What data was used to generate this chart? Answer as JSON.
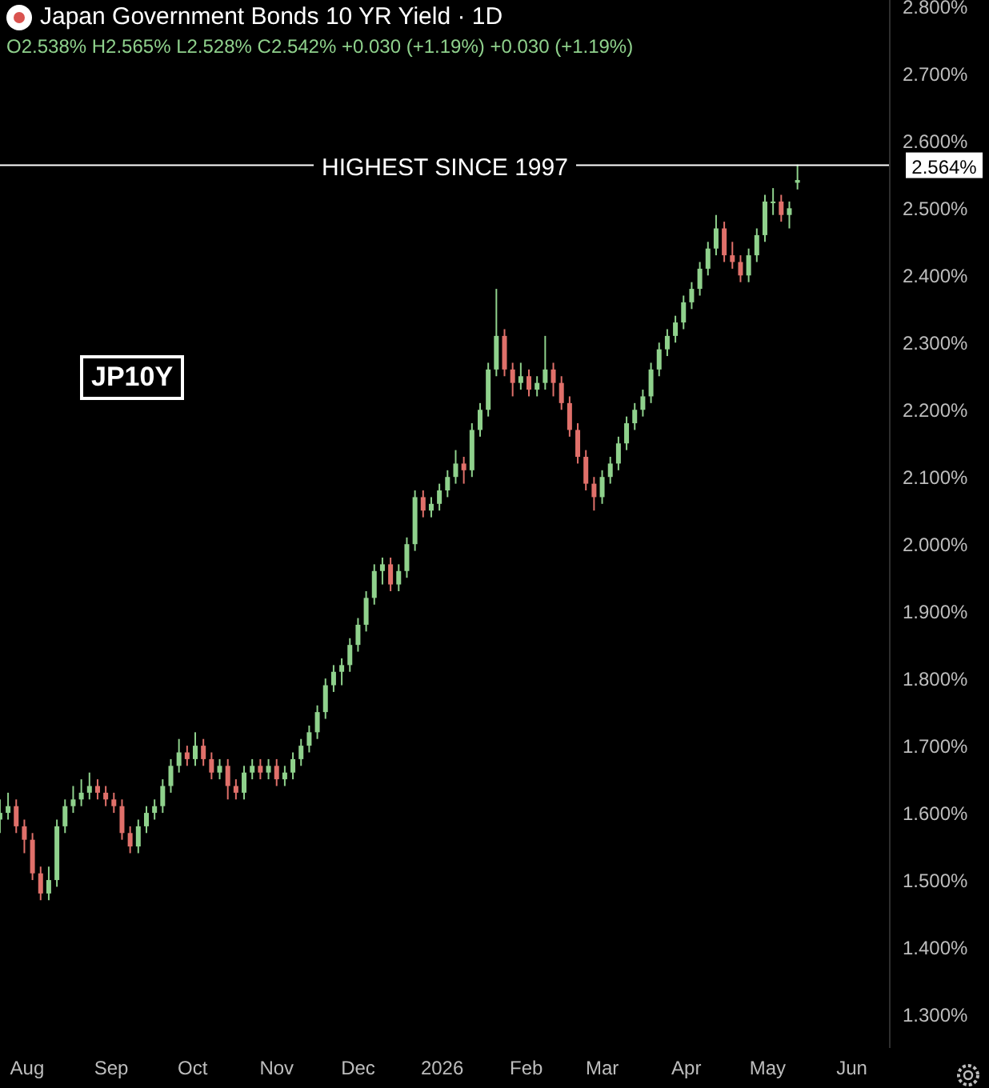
{
  "chart_data": {
    "type": "candlestick",
    "title": "Japan Government Bonds 10 YR Yield · 1D",
    "subtitle": "O2.538% H2.565% L2.528% C2.542% +0.030 (+1.19%) +0.030 (+1.19%)",
    "x": [
      "2025-07-22",
      "2025-07-25",
      "2025-07-28",
      "2025-07-31",
      "2025-08-03",
      "2025-08-06",
      "2025-08-09",
      "2025-08-12",
      "2025-08-15",
      "2025-08-18",
      "2025-08-21",
      "2025-08-24",
      "2025-08-27",
      "2025-08-30",
      "2025-09-02",
      "2025-09-05",
      "2025-09-08",
      "2025-09-11",
      "2025-09-14",
      "2025-09-17",
      "2025-09-20",
      "2025-09-23",
      "2025-09-26",
      "2025-09-29",
      "2025-10-02",
      "2025-10-05",
      "2025-10-08",
      "2025-10-11",
      "2025-10-14",
      "2025-10-17",
      "2025-10-20",
      "2025-10-23",
      "2025-10-26",
      "2025-10-29",
      "2025-11-01",
      "2025-11-04",
      "2025-11-07",
      "2025-11-10",
      "2025-11-13",
      "2025-11-16",
      "2025-11-19",
      "2025-11-22",
      "2025-11-25",
      "2025-11-28",
      "2025-12-01",
      "2025-12-04",
      "2025-12-07",
      "2025-12-10",
      "2025-12-13",
      "2025-12-16",
      "2025-12-19",
      "2025-12-22",
      "2025-12-25",
      "2025-12-28",
      "2025-12-31",
      "2026-01-03",
      "2026-01-06",
      "2026-01-09",
      "2026-01-12",
      "2026-01-15",
      "2026-01-18",
      "2026-01-21",
      "2026-01-24",
      "2026-01-27",
      "2026-01-30",
      "2026-02-02",
      "2026-02-05",
      "2026-02-08",
      "2026-02-11",
      "2026-02-14",
      "2026-02-17",
      "2026-02-20",
      "2026-02-23",
      "2026-02-26",
      "2026-03-01",
      "2026-03-04",
      "2026-03-07",
      "2026-03-10",
      "2026-03-13",
      "2026-03-16",
      "2026-03-19",
      "2026-03-22",
      "2026-03-25",
      "2026-03-28",
      "2026-03-31",
      "2026-04-03",
      "2026-04-06",
      "2026-04-09",
      "2026-04-12",
      "2026-04-15",
      "2026-04-18",
      "2026-04-21",
      "2026-04-24",
      "2026-04-27",
      "2026-04-30",
      "2026-05-03",
      "2026-05-06",
      "2026-05-09",
      "2026-05-12"
    ],
    "ohlc": [
      [
        1.59,
        1.62,
        1.57,
        1.6
      ],
      [
        1.6,
        1.63,
        1.59,
        1.61
      ],
      [
        1.61,
        1.62,
        1.57,
        1.58
      ],
      [
        1.58,
        1.59,
        1.54,
        1.56
      ],
      [
        1.56,
        1.57,
        1.5,
        1.51
      ],
      [
        1.51,
        1.52,
        1.47,
        1.48
      ],
      [
        1.48,
        1.52,
        1.47,
        1.5
      ],
      [
        1.5,
        1.59,
        1.49,
        1.58
      ],
      [
        1.58,
        1.62,
        1.57,
        1.61
      ],
      [
        1.61,
        1.64,
        1.6,
        1.62
      ],
      [
        1.62,
        1.65,
        1.61,
        1.63
      ],
      [
        1.63,
        1.66,
        1.62,
        1.64
      ],
      [
        1.64,
        1.65,
        1.62,
        1.63
      ],
      [
        1.63,
        1.64,
        1.61,
        1.62
      ],
      [
        1.62,
        1.63,
        1.6,
        1.61
      ],
      [
        1.61,
        1.62,
        1.56,
        1.57
      ],
      [
        1.57,
        1.58,
        1.54,
        1.55
      ],
      [
        1.55,
        1.59,
        1.54,
        1.58
      ],
      [
        1.58,
        1.61,
        1.57,
        1.6
      ],
      [
        1.6,
        1.62,
        1.59,
        1.61
      ],
      [
        1.61,
        1.65,
        1.6,
        1.64
      ],
      [
        1.64,
        1.68,
        1.63,
        1.67
      ],
      [
        1.67,
        1.71,
        1.66,
        1.69
      ],
      [
        1.69,
        1.7,
        1.67,
        1.68
      ],
      [
        1.68,
        1.72,
        1.67,
        1.7
      ],
      [
        1.7,
        1.71,
        1.67,
        1.68
      ],
      [
        1.68,
        1.69,
        1.65,
        1.66
      ],
      [
        1.66,
        1.68,
        1.65,
        1.67
      ],
      [
        1.67,
        1.68,
        1.62,
        1.64
      ],
      [
        1.64,
        1.65,
        1.62,
        1.63
      ],
      [
        1.63,
        1.67,
        1.62,
        1.66
      ],
      [
        1.66,
        1.68,
        1.65,
        1.67
      ],
      [
        1.67,
        1.68,
        1.65,
        1.66
      ],
      [
        1.66,
        1.68,
        1.65,
        1.67
      ],
      [
        1.67,
        1.68,
        1.64,
        1.65
      ],
      [
        1.65,
        1.67,
        1.64,
        1.66
      ],
      [
        1.66,
        1.69,
        1.65,
        1.68
      ],
      [
        1.68,
        1.71,
        1.67,
        1.7
      ],
      [
        1.7,
        1.73,
        1.69,
        1.72
      ],
      [
        1.72,
        1.76,
        1.71,
        1.75
      ],
      [
        1.75,
        1.8,
        1.74,
        1.79
      ],
      [
        1.79,
        1.82,
        1.78,
        1.81
      ],
      [
        1.81,
        1.83,
        1.79,
        1.82
      ],
      [
        1.82,
        1.86,
        1.81,
        1.85
      ],
      [
        1.85,
        1.89,
        1.84,
        1.88
      ],
      [
        1.88,
        1.93,
        1.87,
        1.92
      ],
      [
        1.92,
        1.97,
        1.91,
        1.96
      ],
      [
        1.96,
        1.98,
        1.94,
        1.97
      ],
      [
        1.97,
        1.98,
        1.93,
        1.94
      ],
      [
        1.94,
        1.97,
        1.93,
        1.96
      ],
      [
        1.96,
        2.01,
        1.95,
        2.0
      ],
      [
        2.0,
        2.08,
        1.99,
        2.07
      ],
      [
        2.07,
        2.08,
        2.04,
        2.05
      ],
      [
        2.05,
        2.07,
        2.04,
        2.06
      ],
      [
        2.06,
        2.09,
        2.05,
        2.08
      ],
      [
        2.08,
        2.11,
        2.07,
        2.1
      ],
      [
        2.1,
        2.14,
        2.09,
        2.12
      ],
      [
        2.12,
        2.13,
        2.09,
        2.11
      ],
      [
        2.11,
        2.18,
        2.1,
        2.17
      ],
      [
        2.17,
        2.21,
        2.16,
        2.2
      ],
      [
        2.2,
        2.27,
        2.19,
        2.26
      ],
      [
        2.26,
        2.38,
        2.25,
        2.31
      ],
      [
        2.31,
        2.32,
        2.25,
        2.26
      ],
      [
        2.26,
        2.27,
        2.22,
        2.24
      ],
      [
        2.24,
        2.27,
        2.23,
        2.25
      ],
      [
        2.25,
        2.26,
        2.22,
        2.23
      ],
      [
        2.23,
        2.25,
        2.22,
        2.24
      ],
      [
        2.24,
        2.31,
        2.23,
        2.26
      ],
      [
        2.26,
        2.27,
        2.22,
        2.24
      ],
      [
        2.24,
        2.25,
        2.2,
        2.21
      ],
      [
        2.21,
        2.22,
        2.16,
        2.17
      ],
      [
        2.17,
        2.18,
        2.12,
        2.13
      ],
      [
        2.13,
        2.14,
        2.08,
        2.09
      ],
      [
        2.09,
        2.1,
        2.05,
        2.07
      ],
      [
        2.07,
        2.11,
        2.06,
        2.1
      ],
      [
        2.1,
        2.13,
        2.09,
        2.12
      ],
      [
        2.12,
        2.16,
        2.11,
        2.15
      ],
      [
        2.15,
        2.19,
        2.14,
        2.18
      ],
      [
        2.18,
        2.21,
        2.17,
        2.2
      ],
      [
        2.2,
        2.23,
        2.19,
        2.22
      ],
      [
        2.22,
        2.27,
        2.21,
        2.26
      ],
      [
        2.26,
        2.3,
        2.25,
        2.29
      ],
      [
        2.29,
        2.32,
        2.28,
        2.31
      ],
      [
        2.31,
        2.34,
        2.3,
        2.33
      ],
      [
        2.33,
        2.37,
        2.32,
        2.36
      ],
      [
        2.36,
        2.39,
        2.35,
        2.38
      ],
      [
        2.38,
        2.42,
        2.37,
        2.41
      ],
      [
        2.41,
        2.45,
        2.4,
        2.44
      ],
      [
        2.44,
        2.49,
        2.43,
        2.47
      ],
      [
        2.47,
        2.48,
        2.42,
        2.43
      ],
      [
        2.43,
        2.45,
        2.41,
        2.42
      ],
      [
        2.42,
        2.43,
        2.39,
        2.4
      ],
      [
        2.4,
        2.44,
        2.39,
        2.43
      ],
      [
        2.43,
        2.47,
        2.42,
        2.46
      ],
      [
        2.46,
        2.52,
        2.45,
        2.51
      ],
      [
        2.51,
        2.53,
        2.49,
        2.51
      ],
      [
        2.51,
        2.52,
        2.48,
        2.49
      ],
      [
        2.49,
        2.51,
        2.47,
        2.5
      ],
      [
        2.538,
        2.565,
        2.528,
        2.542
      ]
    ],
    "colors": [
      "#8fd18c",
      "#8fd18c",
      "#e0706a",
      "#e0706a",
      "#e0706a",
      "#e0706a",
      "#8fd18c",
      "#8fd18c",
      "#8fd18c",
      "#8fd18c",
      "#8fd18c",
      "#8fd18c",
      "#e0706a",
      "#e0706a",
      "#e0706a",
      "#e0706a",
      "#e0706a",
      "#8fd18c",
      "#8fd18c",
      "#8fd18c",
      "#8fd18c",
      "#8fd18c",
      "#8fd18c",
      "#e0706a",
      "#8fd18c",
      "#e0706a",
      "#e0706a",
      "#8fd18c",
      "#e0706a",
      "#e0706a",
      "#8fd18c",
      "#8fd18c",
      "#e0706a",
      "#8fd18c",
      "#e0706a",
      "#8fd18c",
      "#8fd18c",
      "#8fd18c",
      "#8fd18c",
      "#8fd18c",
      "#8fd18c",
      "#8fd18c",
      "#8fd18c",
      "#8fd18c",
      "#8fd18c",
      "#8fd18c",
      "#8fd18c",
      "#8fd18c",
      "#e0706a",
      "#8fd18c",
      "#8fd18c",
      "#8fd18c",
      "#e0706a",
      "#8fd18c",
      "#8fd18c",
      "#8fd18c",
      "#8fd18c",
      "#e0706a",
      "#8fd18c",
      "#8fd18c",
      "#8fd18c",
      "#8fd18c",
      "#e0706a",
      "#e0706a",
      "#8fd18c",
      "#e0706a",
      "#8fd18c",
      "#8fd18c",
      "#e0706a",
      "#e0706a",
      "#e0706a",
      "#e0706a",
      "#e0706a",
      "#e0706a",
      "#8fd18c",
      "#8fd18c",
      "#8fd18c",
      "#8fd18c",
      "#8fd18c",
      "#8fd18c",
      "#8fd18c",
      "#8fd18c",
      "#8fd18c",
      "#8fd18c",
      "#8fd18c",
      "#8fd18c",
      "#8fd18c",
      "#8fd18c",
      "#8fd18c",
      "#e0706a",
      "#e0706a",
      "#e0706a",
      "#8fd18c",
      "#8fd18c",
      "#8fd18c",
      "#8fd18c",
      "#e0706a",
      "#8fd18c",
      "#8fd18c"
    ],
    "xlim": [
      "2025-07-22",
      "2026-06-15"
    ],
    "xticks": [
      {
        "value": "2025-08",
        "label": "Aug"
      },
      {
        "value": "2025-09",
        "label": "Sep"
      },
      {
        "value": "2025-10",
        "label": "Oct"
      },
      {
        "value": "2025-11",
        "label": "Nov"
      },
      {
        "value": "2025-12",
        "label": "Dec"
      },
      {
        "value": "2026-01",
        "label": "2026"
      },
      {
        "value": "2026-02",
        "label": "Feb"
      },
      {
        "value": "2026-03",
        "label": "Mar"
      },
      {
        "value": "2026-04",
        "label": "Apr"
      },
      {
        "value": "2026-05",
        "label": "May"
      },
      {
        "value": "2026-06",
        "label": "Jun"
      }
    ],
    "ylim": [
      1.25,
      2.81
    ],
    "yticks": [
      {
        "value": 1.3,
        "label": "1.300%"
      },
      {
        "value": 1.4,
        "label": "1.400%"
      },
      {
        "value": 1.5,
        "label": "1.500%"
      },
      {
        "value": 1.6,
        "label": "1.600%"
      },
      {
        "value": 1.7,
        "label": "1.700%"
      },
      {
        "value": 1.8,
        "label": "1.800%"
      },
      {
        "value": 1.9,
        "label": "1.900%"
      },
      {
        "value": 2.0,
        "label": "2.000%"
      },
      {
        "value": 2.1,
        "label": "2.100%"
      },
      {
        "value": 2.2,
        "label": "2.200%"
      },
      {
        "value": 2.3,
        "label": "2.300%"
      },
      {
        "value": 2.4,
        "label": "2.400%"
      },
      {
        "value": 2.5,
        "label": "2.500%"
      },
      {
        "value": 2.6,
        "label": "2.600%"
      },
      {
        "value": 2.7,
        "label": "2.700%"
      },
      {
        "value": 2.8,
        "label": "2.800%"
      }
    ],
    "ref_lines": [
      {
        "axis": "y",
        "value": 2.564,
        "label": "HIGHEST SINCE 1997",
        "color": "#ffffff"
      }
    ],
    "annotations": [
      "JP10Y",
      "2.564%"
    ],
    "grid": false,
    "legend": false
  }
}
